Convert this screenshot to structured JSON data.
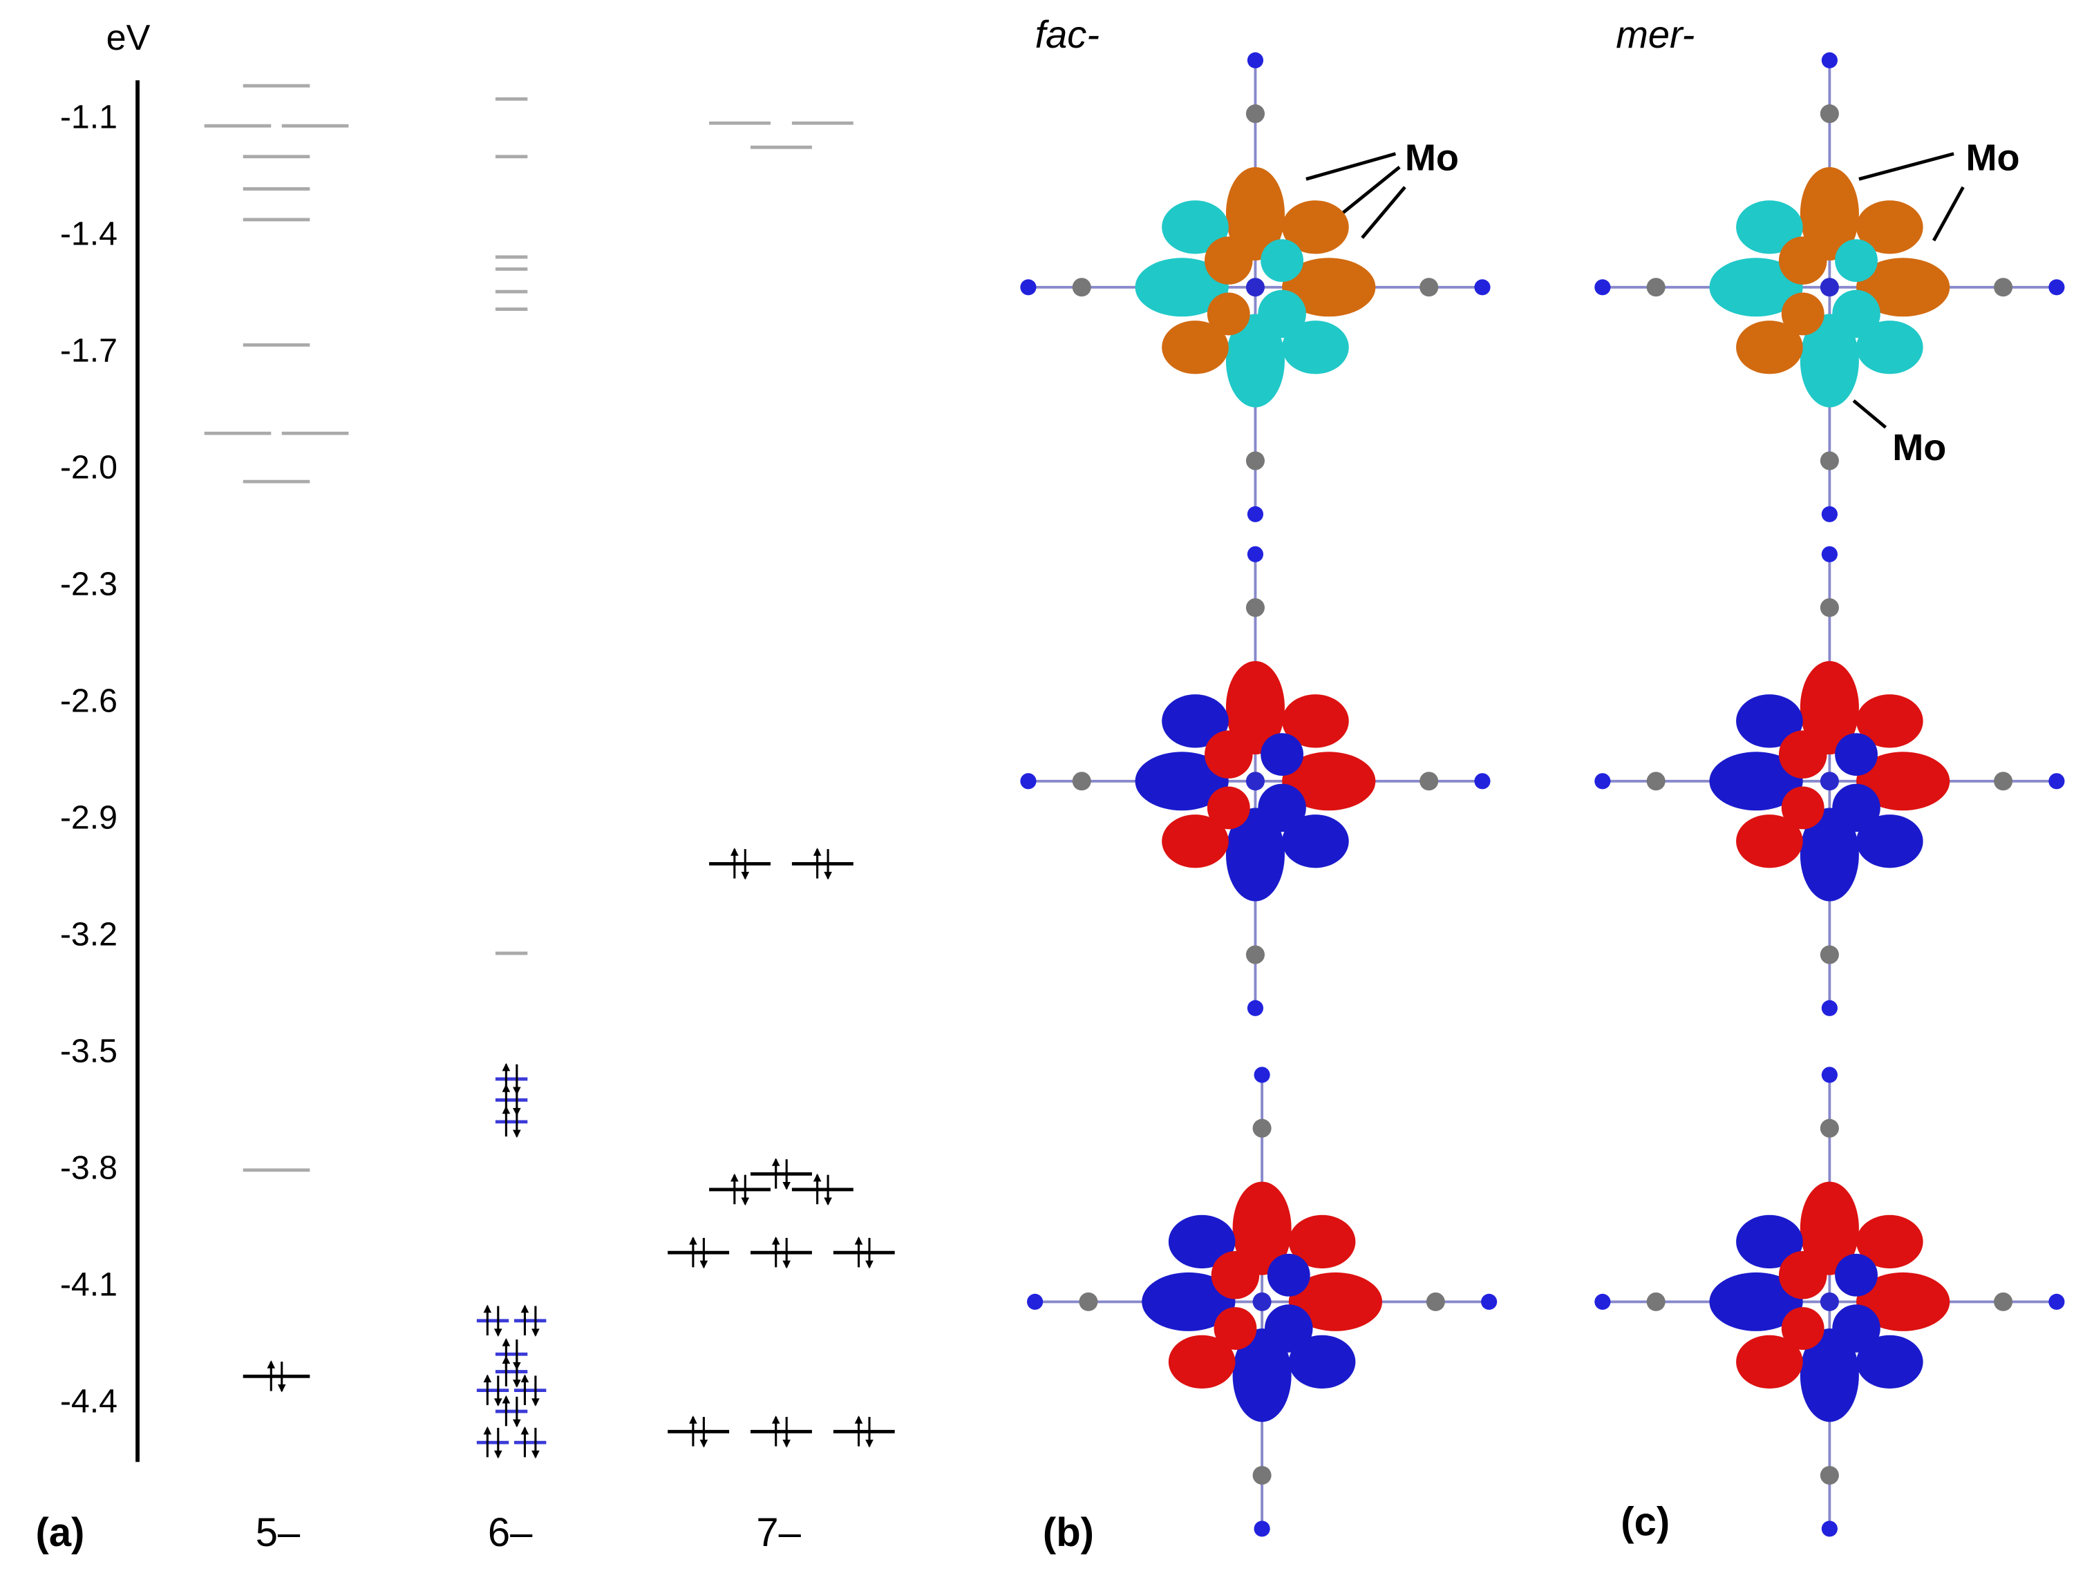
{
  "chart_data": {
    "type": "energy-levels",
    "y_label": "eV",
    "ylim": [
      -4.55,
      -1.0
    ],
    "yticks": [
      -1.1,
      -1.4,
      -1.7,
      {
        "value": -2,
        "label": "-2.0"
      },
      -2.3,
      -2.6,
      -2.9,
      -3.2,
      -3.5,
      -3.8,
      -4.1,
      -4.4
    ],
    "categories": [
      "5–",
      "6–",
      "7–"
    ],
    "unoccupied_color": "#aaaaaa",
    "columns": [
      {
        "unoccupied": [
          -1.014,
          -1.117,
          -1.117,
          -1.196,
          -1.279,
          -1.358,
          -1.68,
          -1.907,
          -1.907,
          -2.031,
          -3.8
        ],
        "occupied": [
          -4.33
        ],
        "occupied_color": "#000000"
      },
      {
        "unoccupied": [
          -1.048,
          -1.196,
          -1.454,
          -1.485,
          -1.543,
          -1.588,
          -3.243
        ],
        "occupied": [
          -3.566,
          -3.62,
          -3.676,
          -4.187,
          -4.187,
          -4.273,
          -4.318,
          -4.366,
          -4.366,
          -4.42,
          -4.5,
          -4.5
        ],
        "occupied_color": "#3a3ad8"
      },
      {
        "unoccupied": [
          -1.11,
          -1.11,
          -1.172
        ],
        "occupied": [
          -3.013,
          -3.013,
          -3.81,
          -3.85,
          -3.85,
          -4.012,
          -4.012,
          -4.012,
          -4.472,
          -4.472,
          -4.472
        ],
        "occupied_color": "#000000"
      }
    ]
  },
  "figure": {
    "panel_labels": [
      "(a)",
      "(b)",
      "(c)"
    ],
    "fac": "fac-",
    "mer": "mer-",
    "mo_labels": [
      "Mo",
      "Mo",
      "Mo"
    ]
  }
}
